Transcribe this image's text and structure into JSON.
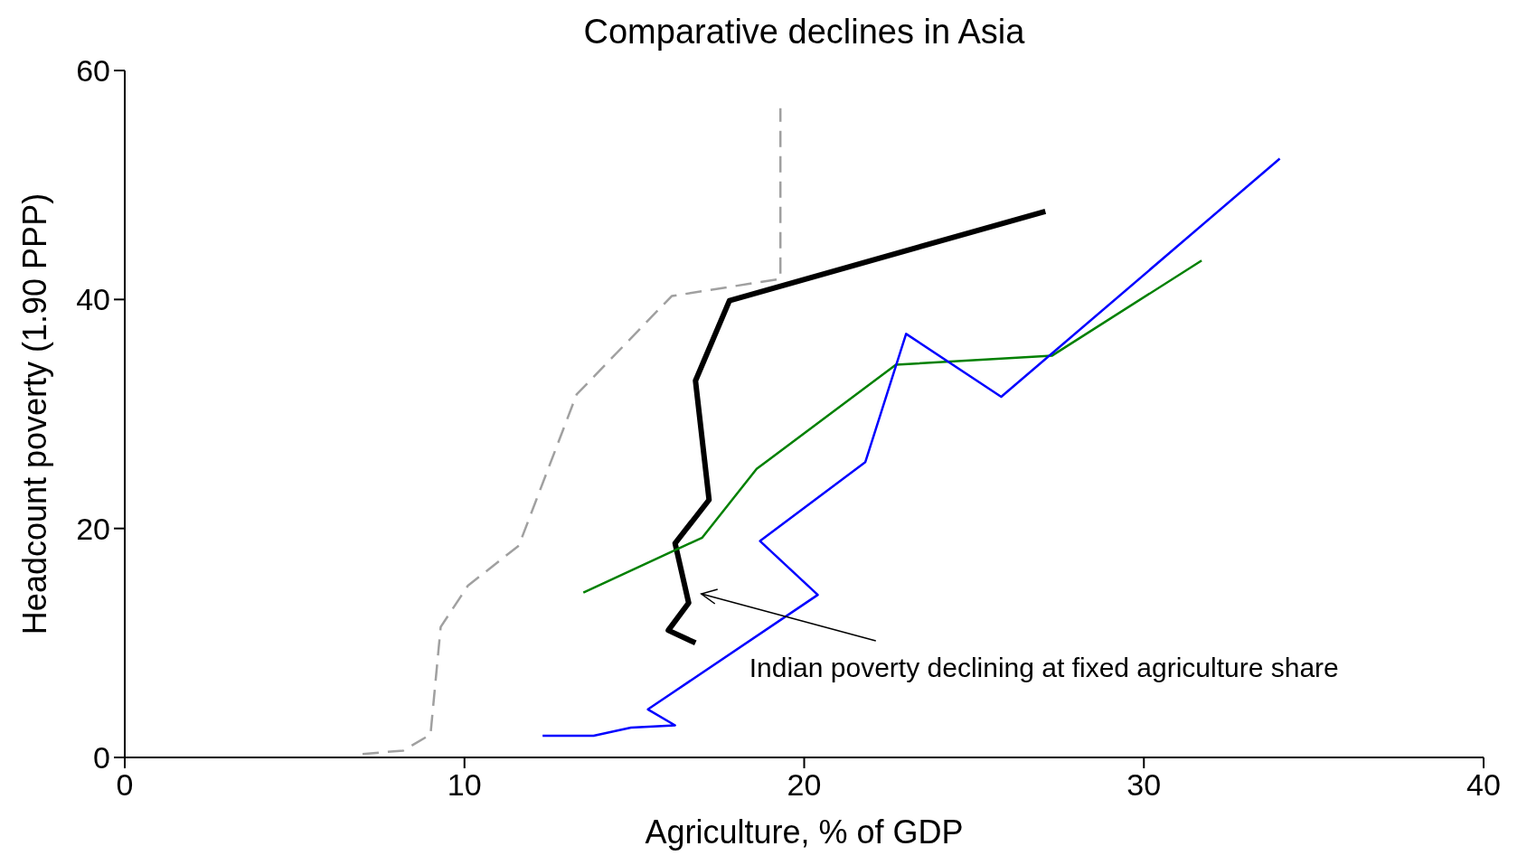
{
  "chart_data": {
    "type": "line",
    "title": "Comparative declines in Asia",
    "xlabel": "Agriculture, % of GDP",
    "ylabel": "Headcount poverty (1.90 PPP)",
    "xlim": [
      0,
      40
    ],
    "xticks": [
      0,
      10,
      20,
      30,
      40
    ],
    "ylim": [
      0,
      60
    ],
    "yticks": [
      0,
      20,
      40,
      60
    ],
    "annotations": [
      {
        "text": "Indian poverty declining at fixed agriculture share",
        "x": 16.6,
        "y": 13.5
      }
    ],
    "series": [
      {
        "color": "#a0a0a0",
        "line_style": "dashed",
        "x": [
          7.0,
          8.2,
          9.0,
          9.3,
          10.1,
          11.6,
          13.3,
          16.1,
          19.3,
          19.3
        ],
        "values": [
          0.3,
          0.6,
          2.0,
          11.4,
          15.0,
          18.5,
          31.7,
          40.3,
          41.8,
          56.7
        ]
      },
      {
        "color": "#000000",
        "line_style": "solid",
        "x": [
          16.8,
          16.0,
          16.6,
          16.2,
          17.2,
          16.8,
          17.8,
          27.1
        ],
        "values": [
          10.0,
          11.1,
          13.5,
          18.7,
          22.5,
          32.9,
          39.9,
          47.7
        ]
      },
      {
        "color": "#008000",
        "line_style": "solid",
        "x": [
          13.5,
          17.0,
          18.6,
          22.7,
          27.3,
          31.7
        ],
        "values": [
          14.4,
          19.2,
          25.2,
          34.3,
          35.1,
          43.4
        ]
      },
      {
        "color": "#0000ff",
        "line_style": "solid",
        "x": [
          12.3,
          13.8,
          14.9,
          16.2,
          15.4,
          20.4,
          18.7,
          21.8,
          23.0,
          25.8,
          34.0
        ],
        "values": [
          1.9,
          1.9,
          2.6,
          2.8,
          4.2,
          14.2,
          18.9,
          25.8,
          37.0,
          31.5,
          52.3
        ]
      }
    ]
  }
}
